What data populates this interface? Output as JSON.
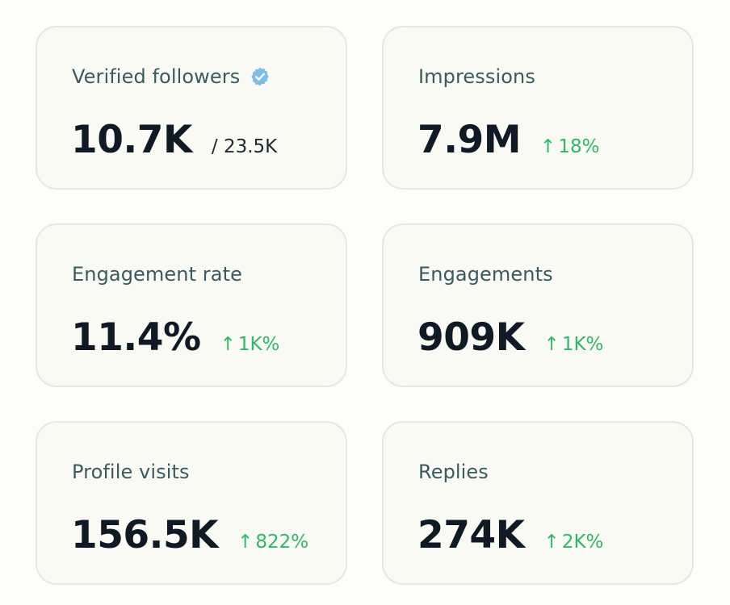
{
  "colors": {
    "background": "#fdfdf9",
    "card_background": "#fafaf5",
    "card_border": "#e6e7e1",
    "label": "#3a5a60",
    "value": "#0f1a24",
    "delta_positive": "#2fb76a",
    "verified_badge": "#7bbde6"
  },
  "cards": [
    {
      "label": "Verified followers",
      "icon": "verified-badge-icon",
      "value": "10.7K",
      "sub": "/ 23.5K"
    },
    {
      "label": "Impressions",
      "value": "7.9M",
      "delta_arrow": "↑",
      "delta": "18%"
    },
    {
      "label": "Engagement rate",
      "value": "11.4%",
      "delta_arrow": "↑",
      "delta": "1K%"
    },
    {
      "label": "Engagements",
      "value": "909K",
      "delta_arrow": "↑",
      "delta": "1K%"
    },
    {
      "label": "Profile visits",
      "value": "156.5K",
      "delta_arrow": "↑",
      "delta": "822%"
    },
    {
      "label": "Replies",
      "value": "274K",
      "delta_arrow": "↑",
      "delta": "2K%"
    }
  ]
}
